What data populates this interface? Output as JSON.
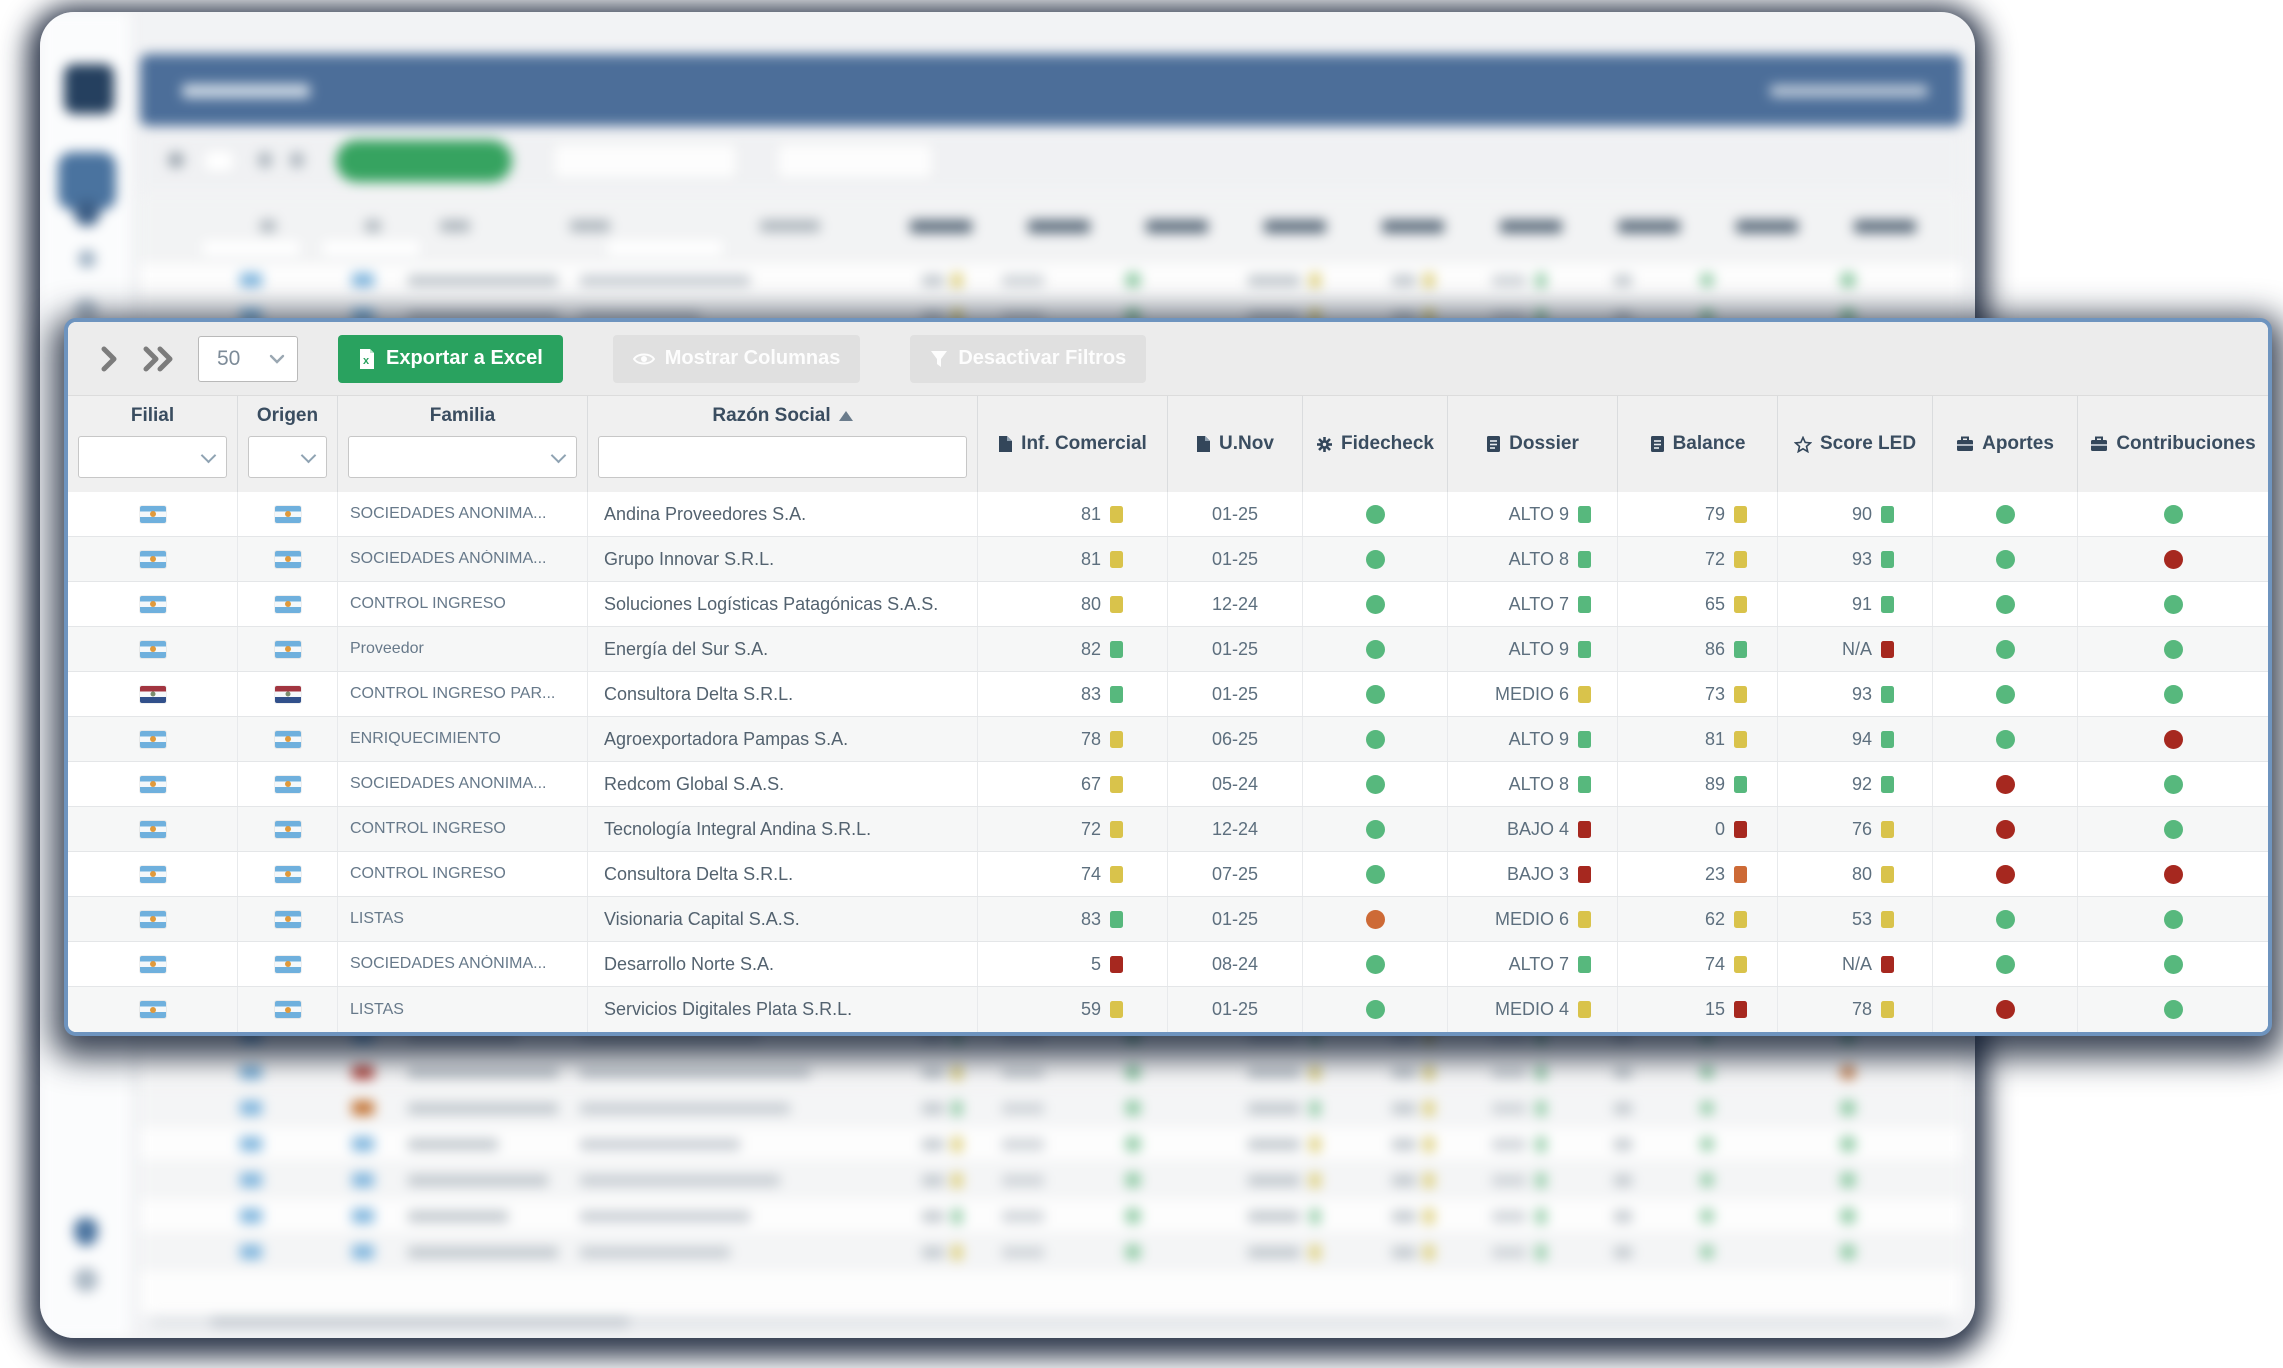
{
  "overlay": {
    "toolbar": {
      "page_size": "50",
      "export_label": "Exportar a Excel",
      "columns_label": "Mostrar Columnas",
      "filters_label": "Desactivar Filtros"
    },
    "columns": [
      {
        "label": "Filial"
      },
      {
        "label": "Origen"
      },
      {
        "label": "Familia"
      },
      {
        "label": "Razón Social",
        "sort": "asc"
      },
      {
        "label": "Inf. Comercial",
        "icon": "file"
      },
      {
        "label": "U.Nov",
        "icon": "file"
      },
      {
        "label": "Fidecheck",
        "icon": "gear"
      },
      {
        "label": "Dossier",
        "icon": "doc-lines"
      },
      {
        "label": "Balance",
        "icon": "doc-lines"
      },
      {
        "label": "Score LED",
        "icon": "star"
      },
      {
        "label": "Aportes",
        "icon": "briefcase"
      },
      {
        "label": "Contribuciones",
        "icon": "briefcase"
      }
    ],
    "rows": [
      {
        "filial": "ar",
        "origen": "ar",
        "familia": "SOCIEDADES ANONIMA...",
        "razon": "Andina Proveedores S.A.",
        "inf": {
          "v": "81",
          "c": "yellow"
        },
        "unov": "01-25",
        "fidecheck": "green",
        "dossier": {
          "v": "ALTO 9",
          "c": "green"
        },
        "balance": {
          "v": "79",
          "c": "yellow"
        },
        "score": {
          "v": "90",
          "c": "green"
        },
        "aportes": "green",
        "contrib": "green"
      },
      {
        "filial": "ar",
        "origen": "ar",
        "familia": "SOCIEDADES ANÓNIMA...",
        "razon": "Grupo Innovar S.R.L.",
        "inf": {
          "v": "81",
          "c": "yellow"
        },
        "unov": "01-25",
        "fidecheck": "green",
        "dossier": {
          "v": "ALTO 8",
          "c": "green"
        },
        "balance": {
          "v": "72",
          "c": "yellow"
        },
        "score": {
          "v": "93",
          "c": "green"
        },
        "aportes": "green",
        "contrib": "red"
      },
      {
        "filial": "ar",
        "origen": "ar",
        "familia": "CONTROL INGRESO",
        "razon": "Soluciones Logísticas Patagónicas S.A.S.",
        "inf": {
          "v": "80",
          "c": "yellow"
        },
        "unov": "12-24",
        "fidecheck": "green",
        "dossier": {
          "v": "ALTO 7",
          "c": "green"
        },
        "balance": {
          "v": "65",
          "c": "yellow"
        },
        "score": {
          "v": "91",
          "c": "green"
        },
        "aportes": "green",
        "contrib": "green"
      },
      {
        "filial": "ar",
        "origen": "ar",
        "familia": " Proveedor",
        "razon": "Energía del Sur S.A.",
        "inf": {
          "v": "82",
          "c": "green"
        },
        "unov": "01-25",
        "fidecheck": "green",
        "dossier": {
          "v": "ALTO 9",
          "c": "green"
        },
        "balance": {
          "v": "86",
          "c": "green"
        },
        "score": {
          "v": "N/A",
          "c": "red"
        },
        "aportes": "green",
        "contrib": "green"
      },
      {
        "filial": "py",
        "origen": "py",
        "familia": "CONTROL INGRESO PAR...",
        "razon": "Consultora Delta S.R.L.",
        "inf": {
          "v": "83",
          "c": "green"
        },
        "unov": "01-25",
        "fidecheck": "green",
        "dossier": {
          "v": "MEDIO 6",
          "c": "yellow"
        },
        "balance": {
          "v": "73",
          "c": "yellow"
        },
        "score": {
          "v": "93",
          "c": "green"
        },
        "aportes": "green",
        "contrib": "green"
      },
      {
        "filial": "ar",
        "origen": "ar",
        "familia": "ENRIQUECIMIENTO",
        "razon": "Agroexportadora Pampas S.A.",
        "inf": {
          "v": "78",
          "c": "yellow"
        },
        "unov": "06-25",
        "fidecheck": "green",
        "dossier": {
          "v": "ALTO 9",
          "c": "green"
        },
        "balance": {
          "v": "81",
          "c": "yellow"
        },
        "score": {
          "v": "94",
          "c": "green"
        },
        "aportes": "green",
        "contrib": "red"
      },
      {
        "filial": "ar",
        "origen": "ar",
        "familia": "SOCIEDADES ANONIMA...",
        "razon": "Redcom Global S.A.S.",
        "inf": {
          "v": "67",
          "c": "yellow"
        },
        "unov": "05-24",
        "fidecheck": "green",
        "dossier": {
          "v": "ALTO 8",
          "c": "green"
        },
        "balance": {
          "v": "89",
          "c": "green"
        },
        "score": {
          "v": "92",
          "c": "green"
        },
        "aportes": "red",
        "contrib": "green"
      },
      {
        "filial": "ar",
        "origen": "ar",
        "familia": "CONTROL INGRESO",
        "razon": "Tecnología Integral Andina S.R.L.",
        "inf": {
          "v": "72",
          "c": "yellow"
        },
        "unov": "12-24",
        "fidecheck": "green",
        "dossier": {
          "v": "BAJO 4",
          "c": "red"
        },
        "balance": {
          "v": "0",
          "c": "red"
        },
        "score": {
          "v": "76",
          "c": "yellow"
        },
        "aportes": "red",
        "contrib": "green"
      },
      {
        "filial": "ar",
        "origen": "ar",
        "familia": "CONTROL INGRESO",
        "razon": "Consultora Delta S.R.L.",
        "inf": {
          "v": "74",
          "c": "yellow"
        },
        "unov": "07-25",
        "fidecheck": "green",
        "dossier": {
          "v": "BAJO 3",
          "c": "red"
        },
        "balance": {
          "v": "23",
          "c": "orange"
        },
        "score": {
          "v": "80",
          "c": "yellow"
        },
        "aportes": "red",
        "contrib": "red"
      },
      {
        "filial": "ar",
        "origen": "ar",
        "familia": "LISTAS",
        "razon": "Visionaria Capital S.A.S.",
        "inf": {
          "v": "83",
          "c": "green"
        },
        "unov": "01-25",
        "fidecheck": "orange",
        "dossier": {
          "v": "MEDIO 6",
          "c": "yellow"
        },
        "balance": {
          "v": "62",
          "c": "yellow"
        },
        "score": {
          "v": "53",
          "c": "yellow"
        },
        "aportes": "green",
        "contrib": "green"
      },
      {
        "filial": "ar",
        "origen": "ar",
        "familia": "SOCIEDADES ANÓNIMA...",
        "razon": "Desarrollo Norte S.A.",
        "inf": {
          "v": "5",
          "c": "red"
        },
        "unov": "08-24",
        "fidecheck": "green",
        "dossier": {
          "v": "ALTO 7",
          "c": "green"
        },
        "balance": {
          "v": "74",
          "c": "yellow"
        },
        "score": {
          "v": "N/A",
          "c": "red"
        },
        "aportes": "green",
        "contrib": "green"
      },
      {
        "filial": "ar",
        "origen": "ar",
        "familia": "LISTAS",
        "razon": "Servicios Digitales Plata S.R.L.",
        "inf": {
          "v": "59",
          "c": "yellow"
        },
        "unov": "01-25",
        "fidecheck": "green",
        "dossier": {
          "v": "MEDIO 4",
          "c": "yellow"
        },
        "balance": {
          "v": "15",
          "c": "red"
        },
        "score": {
          "v": "78",
          "c": "yellow"
        },
        "aportes": "red",
        "contrib": "green"
      }
    ],
    "status_colors": {
      "green": "#57b87d",
      "yellow": "#d9c34b",
      "orange": "#cd6a36",
      "red": "#a6281f"
    }
  },
  "background": {
    "accent": "#4c6e99",
    "flag_colors": {
      "b": "#7db4dd",
      "r": "#b5483f",
      "o": "#c2702f"
    },
    "chip_colors": {
      "y": "#dbcc72",
      "g": "#8cc9a2",
      "r": "#b8564a",
      "o": "#cd8a5a"
    },
    "rows": [
      {
        "f2": "b",
        "fw": 150,
        "nw": 170,
        "c1": "y",
        "d1": "g",
        "rd": "g"
      },
      {
        "f2": "b",
        "fw": 150,
        "nw": 120,
        "c1": "y",
        "d1": "g",
        "rd": "g"
      },
      {
        "f2": "b",
        "fw": 110,
        "nw": 200,
        "c1": "y",
        "d1": "g",
        "rd": "g"
      },
      {
        "f2": "b",
        "fw": 90,
        "nw": 150,
        "c1": "g",
        "d1": "g",
        "rd": "g"
      },
      {
        "f2": "b",
        "fw": 150,
        "nw": 210,
        "c1": "y",
        "d1": "g",
        "rd": "r"
      },
      {
        "f2": "b",
        "fw": 120,
        "nw": 160,
        "c1": "y",
        "d1": "g",
        "rd": "g"
      },
      {
        "f2": "b",
        "fw": 140,
        "nw": 190,
        "c1": "g",
        "d1": "g",
        "rd": "g"
      },
      {
        "f2": "b",
        "fw": 100,
        "nw": 140,
        "c1": "y",
        "d1": "g",
        "rd": "g"
      },
      {
        "f2": "b",
        "fw": 150,
        "nw": 180,
        "c1": "y",
        "d1": "g",
        "rd": "g"
      },
      {
        "f2": "b",
        "fw": 130,
        "nw": 220,
        "c1": "g",
        "d1": "g",
        "rd": "g"
      },
      {
        "f2": "b",
        "fw": 150,
        "nw": 160,
        "c1": "y",
        "d1": "g",
        "rd": "g"
      },
      {
        "f2": "b",
        "fw": 110,
        "nw": 130,
        "c1": "y",
        "d1": "g",
        "rd": "r"
      },
      {
        "f2": "b",
        "fw": 140,
        "nw": 200,
        "c1": "g",
        "d1": "g",
        "rd": "g"
      },
      {
        "f2": "b",
        "fw": 150,
        "nw": 170,
        "c1": "y",
        "d1": "g",
        "rd": "g"
      },
      {
        "f2": "b",
        "fw": 90,
        "nw": 150,
        "c1": "y",
        "d1": "g",
        "rd": "g"
      },
      {
        "f2": "b",
        "fw": 150,
        "nw": 190,
        "c1": "g",
        "d1": "g",
        "rd": "g"
      },
      {
        "f2": "b",
        "fw": 120,
        "nw": 160,
        "c1": "y",
        "d1": "g",
        "rd": "g"
      },
      {
        "f2": "b",
        "fw": 140,
        "nw": 210,
        "c1": "y",
        "d1": "o",
        "rd": "r"
      },
      {
        "f2": "b",
        "fw": 100,
        "nw": 140,
        "c1": "y",
        "d1": "g",
        "rd": "g"
      },
      {
        "f2": "b",
        "fw": 150,
        "nw": 180,
        "c1": "y",
        "d1": "g",
        "rd": "g"
      },
      {
        "f2": "b",
        "fw": 80,
        "nw": 130,
        "c1": "y",
        "d1": "g",
        "rd": "g"
      },
      {
        "f2": "b",
        "fw": 110,
        "nw": 180,
        "c1": "g",
        "d1": "g",
        "rd": "g"
      },
      {
        "f2": "r",
        "fw": 150,
        "nw": 230,
        "c1": "y",
        "d1": "g",
        "rd": "o"
      },
      {
        "f2": "o",
        "fw": 150,
        "nw": 210,
        "c1": "g",
        "d1": "g",
        "rd": "g"
      },
      {
        "f2": "b",
        "fw": 90,
        "nw": 160,
        "c1": "y",
        "d1": "g",
        "rd": "g"
      },
      {
        "f2": "b",
        "fw": 140,
        "nw": 200,
        "c1": "y",
        "d1": "g",
        "rd": "g"
      },
      {
        "f2": "b",
        "fw": 100,
        "nw": 170,
        "c1": "g",
        "d1": "g",
        "rd": "g"
      },
      {
        "f2": "b",
        "fw": 150,
        "nw": 150,
        "c1": "y",
        "d1": "g",
        "rd": "g"
      }
    ]
  }
}
